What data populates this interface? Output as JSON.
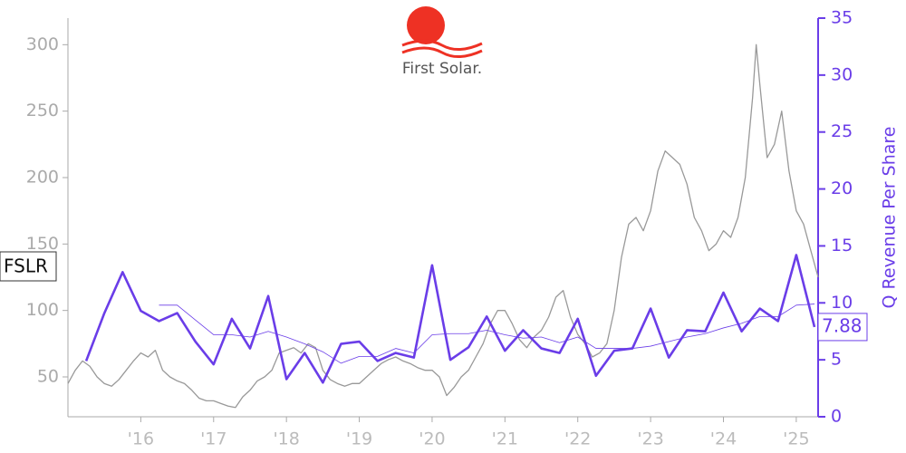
{
  "chart_data": {
    "type": "line",
    "logo_text": "First Solar.",
    "ticker_label": "FSLR",
    "y2_label": "Q Revenue Per Share",
    "xlim": [
      2015,
      2025.3
    ],
    "xticks": [
      {
        "value": 2016,
        "label": "'16"
      },
      {
        "value": 2017,
        "label": "'17"
      },
      {
        "value": 2018,
        "label": "'18"
      },
      {
        "value": 2019,
        "label": "'19"
      },
      {
        "value": 2020,
        "label": "'20"
      },
      {
        "value": 2021,
        "label": "'21"
      },
      {
        "value": 2022,
        "label": "'22"
      },
      {
        "value": 2023,
        "label": "'23"
      },
      {
        "value": 2024,
        "label": "'24"
      },
      {
        "value": 2025,
        "label": "'25"
      }
    ],
    "ylim": [
      20,
      320
    ],
    "yticks": [
      50,
      100,
      150,
      200,
      250,
      300
    ],
    "y2lim": [
      0,
      35
    ],
    "y2ticks": [
      0,
      5,
      10,
      15,
      20,
      25,
      30,
      35
    ],
    "series": [
      {
        "color": "#999999",
        "x": [
          2015.0,
          2015.1,
          2015.2,
          2015.3,
          2015.4,
          2015.5,
          2015.6,
          2015.7,
          2015.8,
          2015.9,
          2016.0,
          2016.1,
          2016.2,
          2016.3,
          2016.4,
          2016.5,
          2016.6,
          2016.7,
          2016.8,
          2016.9,
          2017.0,
          2017.1,
          2017.2,
          2017.3,
          2017.4,
          2017.5,
          2017.6,
          2017.7,
          2017.8,
          2017.9,
          2018.0,
          2018.1,
          2018.2,
          2018.3,
          2018.4,
          2018.5,
          2018.6,
          2018.7,
          2018.8,
          2018.9,
          2019.0,
          2019.1,
          2019.2,
          2019.3,
          2019.4,
          2019.5,
          2019.6,
          2019.7,
          2019.8,
          2019.9,
          2020.0,
          2020.1,
          2020.2,
          2020.3,
          2020.4,
          2020.5,
          2020.6,
          2020.7,
          2020.8,
          2020.9,
          2021.0,
          2021.1,
          2021.2,
          2021.3,
          2021.4,
          2021.5,
          2021.6,
          2021.7,
          2021.8,
          2021.9,
          2022.0,
          2022.1,
          2022.2,
          2022.3,
          2022.4,
          2022.5,
          2022.6,
          2022.7,
          2022.8,
          2022.9,
          2023.0,
          2023.1,
          2023.2,
          2023.3,
          2023.4,
          2023.5,
          2023.6,
          2023.7,
          2023.8,
          2023.9,
          2024.0,
          2024.1,
          2024.2,
          2024.3,
          2024.4,
          2024.45,
          2024.5,
          2024.6,
          2024.7,
          2024.8,
          2024.9,
          2025.0,
          2025.1,
          2025.2,
          2025.3
        ],
        "values": [
          45,
          55,
          62,
          58,
          50,
          45,
          43,
          48,
          55,
          62,
          68,
          65,
          70,
          55,
          50,
          47,
          45,
          40,
          34,
          32,
          32,
          30,
          28,
          27,
          35,
          40,
          47,
          50,
          55,
          68,
          70,
          72,
          68,
          75,
          72,
          55,
          48,
          45,
          43,
          45,
          45,
          50,
          55,
          60,
          63,
          65,
          62,
          60,
          57,
          55,
          55,
          50,
          36,
          42,
          50,
          55,
          65,
          75,
          90,
          100,
          100,
          90,
          78,
          72,
          80,
          85,
          95,
          110,
          115,
          95,
          82,
          75,
          65,
          68,
          75,
          100,
          140,
          165,
          170,
          160,
          175,
          205,
          220,
          215,
          210,
          195,
          170,
          160,
          145,
          150,
          160,
          155,
          170,
          200,
          260,
          300,
          270,
          215,
          225,
          250,
          205,
          175,
          165,
          145,
          125
        ]
      },
      {
        "color": "#6a3de8",
        "axis": "y2",
        "x": [
          2015.25,
          2015.5,
          2015.75,
          2016.0,
          2016.25,
          2016.5,
          2016.75,
          2017.0,
          2017.25,
          2017.5,
          2017.75,
          2018.0,
          2018.25,
          2018.5,
          2018.75,
          2019.0,
          2019.25,
          2019.5,
          2019.75,
          2020.0,
          2020.25,
          2020.5,
          2020.75,
          2021.0,
          2021.25,
          2021.5,
          2021.75,
          2022.0,
          2022.25,
          2022.5,
          2022.75,
          2023.0,
          2023.25,
          2023.5,
          2023.75,
          2024.0,
          2024.25,
          2024.5,
          2024.75,
          2025.0,
          2025.25
        ],
        "values": [
          4.9,
          9.1,
          12.7,
          9.3,
          8.4,
          9.1,
          6.6,
          4.6,
          8.6,
          6.0,
          10.6,
          3.3,
          5.6,
          3.0,
          6.4,
          6.6,
          4.9,
          5.6,
          5.2,
          13.3,
          5.0,
          6.1,
          8.8,
          5.8,
          7.6,
          6.0,
          5.6,
          8.6,
          3.6,
          5.8,
          6.0,
          9.5,
          5.2,
          7.6,
          7.5,
          10.9,
          7.5,
          9.5,
          8.4,
          14.2,
          7.88
        ],
        "value_labels": [
          null,
          null,
          null,
          null,
          null,
          null,
          null,
          null,
          null,
          null,
          null,
          null,
          null,
          null,
          null,
          null,
          null,
          null,
          null,
          null,
          null,
          null,
          null,
          null,
          null,
          null,
          null,
          null,
          null,
          null,
          null,
          null,
          null,
          null,
          null,
          null,
          null,
          null,
          null,
          null,
          "7.88"
        ]
      },
      {
        "color": "#6a3de8",
        "axis": "y2",
        "x": [
          2015.25,
          2015.5,
          2015.75,
          2016.0,
          2016.25,
          2016.5,
          2016.75,
          2017.0,
          2017.25,
          2017.5,
          2017.75,
          2018.0,
          2018.25,
          2018.5,
          2018.75,
          2019.0,
          2019.25,
          2019.5,
          2019.75,
          2020.0,
          2020.25,
          2020.5,
          2020.75,
          2021.0,
          2021.25,
          2021.5,
          2021.75,
          2022.0,
          2022.25,
          2022.5,
          2022.75,
          2023.0,
          2023.25,
          2023.5,
          2023.75,
          2024.0,
          2024.25,
          2024.5,
          2024.75,
          2025.0,
          2025.25
        ],
        "values": [
          null,
          null,
          null,
          null,
          9.8,
          9.8,
          8.5,
          7.2,
          7.2,
          7.0,
          7.5,
          7.0,
          6.4,
          5.7,
          4.7,
          5.3,
          5.3,
          6.0,
          5.6,
          7.2,
          7.3,
          7.3,
          7.6,
          7.2,
          6.9,
          7.0,
          6.5,
          7.0,
          6.0,
          6.0,
          6.0,
          6.2,
          6.6,
          7.0,
          7.3,
          7.8,
          8.2,
          8.8,
          8.8,
          9.8,
          9.9
        ]
      }
    ]
  }
}
